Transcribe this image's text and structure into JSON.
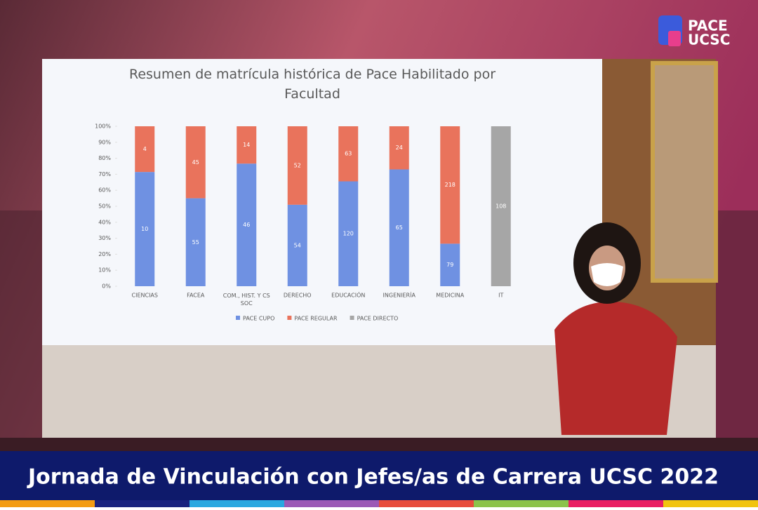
{
  "chart_data": {
    "type": "bar",
    "stack": "percent",
    "title": "Resumen de matrícula histórica de Pace Habilitado por Facultad",
    "categories": [
      "CIENCIAS",
      "FACEA",
      "COM., HIST. Y CS SOC",
      "DERECHO",
      "EDUCACIÓN",
      "INGENIERÍA",
      "MEDICINA",
      "IT"
    ],
    "series": [
      {
        "name": "PACE CUPO",
        "color": "#6f91e2",
        "values": [
          10,
          55,
          46,
          54,
          120,
          65,
          79,
          null
        ]
      },
      {
        "name": "PACE REGULAR",
        "color": "#e9735c",
        "values": [
          4,
          45,
          14,
          52,
          63,
          24,
          218,
          null
        ]
      },
      {
        "name": "PACE DIRECTO",
        "color": "#a6a6a6",
        "values": [
          null,
          null,
          null,
          null,
          null,
          null,
          null,
          108
        ]
      }
    ],
    "ylim": [
      0,
      100
    ],
    "yticks": [
      {
        "value": 0,
        "label": "0%"
      },
      {
        "value": 10,
        "label": "10%"
      },
      {
        "value": 20,
        "label": "20%"
      },
      {
        "value": 30,
        "label": "30%"
      },
      {
        "value": 40,
        "label": "40%"
      },
      {
        "value": 50,
        "label": "50%"
      },
      {
        "value": 60,
        "label": "60%"
      },
      {
        "value": 70,
        "label": "70%"
      },
      {
        "value": 80,
        "label": "80%"
      },
      {
        "value": 90,
        "label": "90%"
      },
      {
        "value": 100,
        "label": "100%"
      }
    ],
    "legend": "bottom"
  },
  "logo": {
    "line1": "PACE",
    "line2": "UCSC"
  },
  "banner": {
    "text": "Jornada de Vinculación con Jefes/as de Carrera UCSC 2022"
  }
}
